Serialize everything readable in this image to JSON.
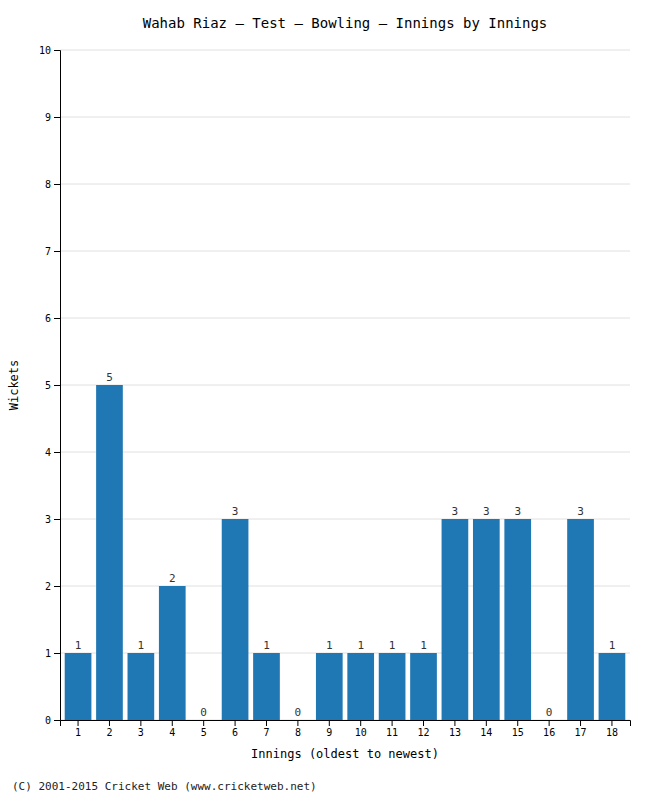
{
  "chart_data": {
    "type": "bar",
    "title": "Wahab Riaz – Test – Bowling – Innings by Innings",
    "xlabel": "Innings (oldest to newest)",
    "ylabel": "Wickets",
    "categories": [
      "1",
      "2",
      "3",
      "4",
      "5",
      "6",
      "7",
      "8",
      "9",
      "10",
      "11",
      "12",
      "13",
      "14",
      "15",
      "16",
      "17",
      "18"
    ],
    "values": [
      1,
      5,
      1,
      2,
      0,
      3,
      1,
      0,
      1,
      1,
      1,
      1,
      3,
      3,
      3,
      0,
      3,
      1
    ],
    "ylim": [
      0,
      10
    ],
    "yticks": [
      0,
      1,
      2,
      3,
      4,
      5,
      6,
      7,
      8,
      9,
      10
    ],
    "grid": true,
    "data_labels": true,
    "footer": "(C) 2001-2015 Cricket Web (www.cricketweb.net)"
  }
}
